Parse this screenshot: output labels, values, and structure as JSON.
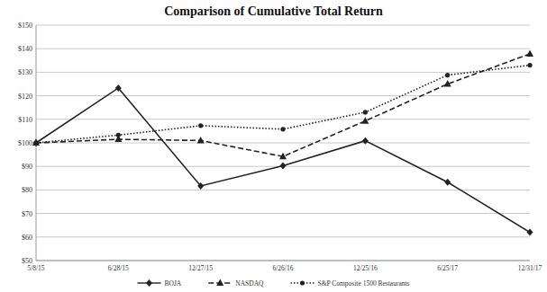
{
  "chart_data": {
    "type": "line",
    "title": "Comparison of Cumulative Total Return",
    "categories": [
      "5/8/15",
      "6/28/15",
      "12/27/15",
      "6/26/16",
      "12/25/16",
      "6/25/17",
      "12/31/17"
    ],
    "series": [
      {
        "name": "BOJA",
        "color": "#222222",
        "marker": "diamond",
        "line_style": "solid",
        "values": [
          100,
          123.3,
          81.7,
          90.3,
          100.9,
          83.3,
          62.0
        ]
      },
      {
        "name": "NASDAQ",
        "color": "#222222",
        "marker": "triangle",
        "line_style": "dashed",
        "values": [
          100,
          101.5,
          101.0,
          94.2,
          109.3,
          125.0,
          137.8
        ]
      },
      {
        "name": "S&P Composite 1500 Restaurants",
        "color": "#222222",
        "marker": "circle",
        "line_style": "dotted",
        "values": [
          100,
          103.3,
          107.3,
          105.8,
          113.0,
          128.8,
          133.0
        ]
      }
    ],
    "ylim": [
      50,
      150
    ],
    "yticks": [
      {
        "value": 50,
        "label": "$50"
      },
      {
        "value": 60,
        "label": "$60"
      },
      {
        "value": 70,
        "label": "$70"
      },
      {
        "value": 80,
        "label": "$80"
      },
      {
        "value": 90,
        "label": "$90"
      },
      {
        "value": 100,
        "label": "$100"
      },
      {
        "value": 110,
        "label": "$110"
      },
      {
        "value": 120,
        "label": "$120"
      },
      {
        "value": 130,
        "label": "$130"
      },
      {
        "value": 140,
        "label": "$140"
      },
      {
        "value": 150,
        "label": "$150"
      }
    ],
    "grid": true,
    "legend": "bottom"
  }
}
